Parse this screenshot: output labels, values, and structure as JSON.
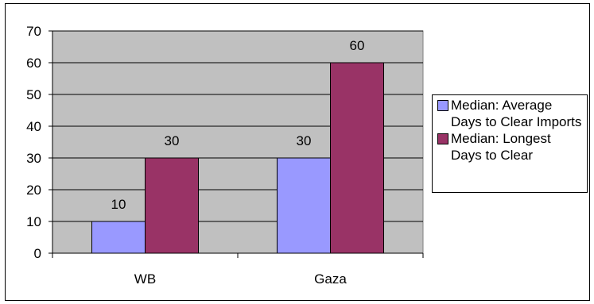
{
  "chart_data": {
    "type": "bar",
    "categories": [
      "WB",
      "Gaza"
    ],
    "series": [
      {
        "name": "Median: Average Days to Clear Imports",
        "values": [
          10,
          30
        ],
        "color": "#9999ff"
      },
      {
        "name": "Median: Longest Days to Clear",
        "values": [
          30,
          60
        ],
        "color": "#993366"
      }
    ],
    "ylim": [
      0,
      70
    ],
    "yticks": [
      0,
      10,
      20,
      30,
      40,
      50,
      60,
      70
    ],
    "grid": true,
    "plot_background": "#c0c0c0",
    "legend_position": "right",
    "data_labels": true
  }
}
